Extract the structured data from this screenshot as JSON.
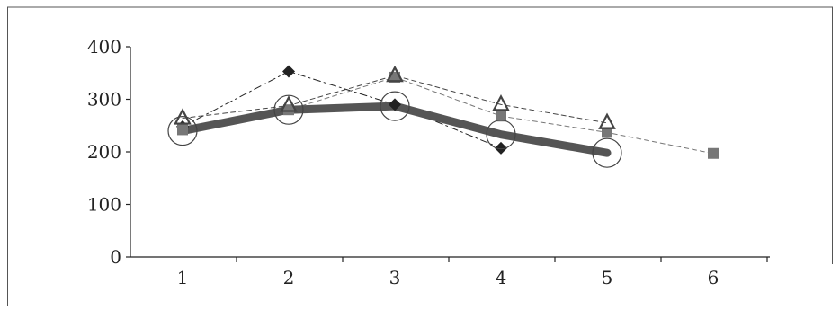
{
  "chart_data": {
    "type": "line",
    "title": "",
    "xlabel": "",
    "ylabel": "",
    "x": [
      1,
      2,
      3,
      4,
      5,
      6
    ],
    "ylim": [
      0,
      400
    ],
    "yticks": [
      0,
      100,
      200,
      300,
      400
    ],
    "xticks": [
      1,
      2,
      3,
      4,
      5,
      6
    ],
    "grid": false,
    "legend": "none",
    "series": [
      {
        "style": "thick-solid-open-circles",
        "color": "#555555",
        "values": [
          240,
          280,
          287,
          233,
          198,
          null
        ]
      },
      {
        "style": "dash-dot-filled-diamonds",
        "color": "#222222",
        "values": [
          248,
          353,
          290,
          207,
          null,
          null
        ]
      },
      {
        "style": "dashed-filled-squares",
        "color": "#777777",
        "values": [
          242,
          280,
          342,
          268,
          237,
          197
        ]
      },
      {
        "style": "dashed-open-triangles",
        "color": "#444444",
        "values": [
          264,
          288,
          345,
          290,
          255,
          null
        ]
      }
    ]
  }
}
